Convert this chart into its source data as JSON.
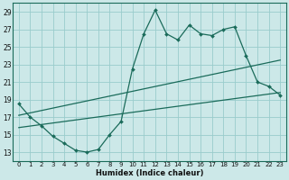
{
  "xlabel": "Humidex (Indice chaleur)",
  "bg_color": "#cce8e8",
  "grid_color": "#99cccc",
  "line_color": "#1a6b5a",
  "xlim": [
    -0.5,
    23.5
  ],
  "ylim": [
    12.0,
    30.0
  ],
  "xticks": [
    0,
    1,
    2,
    3,
    4,
    5,
    6,
    7,
    8,
    9,
    10,
    11,
    12,
    13,
    14,
    15,
    16,
    17,
    18,
    19,
    20,
    21,
    22,
    23
  ],
  "yticks": [
    13,
    15,
    17,
    19,
    21,
    23,
    25,
    27,
    29
  ],
  "line1_x": [
    0,
    1,
    2,
    3,
    4,
    5,
    6,
    7,
    8,
    9,
    10,
    11,
    12,
    13,
    14,
    15,
    16,
    17,
    18,
    19,
    20,
    21,
    22,
    23
  ],
  "line1_y": [
    18.5,
    17.0,
    16.0,
    14.8,
    14.0,
    13.2,
    13.0,
    13.3,
    15.0,
    16.5,
    22.5,
    26.5,
    29.2,
    26.5,
    25.8,
    27.5,
    26.5,
    26.3,
    27.0,
    27.3,
    24.0,
    21.0,
    20.5,
    19.5
  ],
  "line2_x": [
    0,
    23
  ],
  "line2_y": [
    17.2,
    23.5
  ],
  "line3_x": [
    0,
    23
  ],
  "line3_y": [
    15.8,
    19.8
  ],
  "spine_color": "#1a6b5a"
}
